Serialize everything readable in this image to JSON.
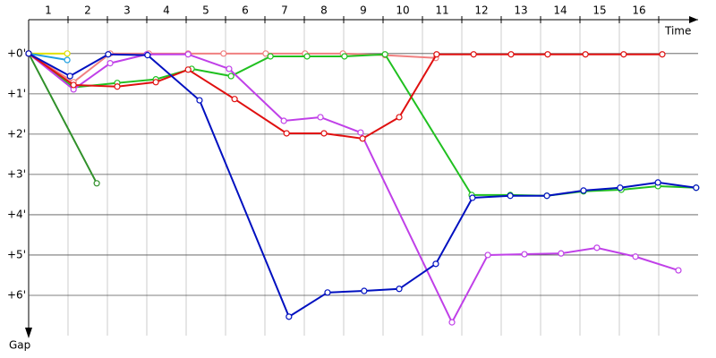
{
  "chart_data": {
    "type": "line",
    "x_label": "Time",
    "y_label": "Gap",
    "xlim": [
      0,
      17
    ],
    "ylim": [
      -0.84,
      7
    ],
    "xticks": [
      {
        "value": 0.5,
        "label": "1"
      },
      {
        "value": 1.5,
        "label": "2"
      },
      {
        "value": 2.5,
        "label": "3"
      },
      {
        "value": 3.5,
        "label": "4"
      },
      {
        "value": 4.5,
        "label": "5"
      },
      {
        "value": 5.5,
        "label": "6"
      },
      {
        "value": 6.5,
        "label": "7"
      },
      {
        "value": 7.5,
        "label": "8"
      },
      {
        "value": 8.5,
        "label": "9"
      },
      {
        "value": 9.5,
        "label": "10"
      },
      {
        "value": 10.5,
        "label": "11"
      },
      {
        "value": 11.5,
        "label": "12"
      },
      {
        "value": 12.5,
        "label": "13"
      },
      {
        "value": 13.5,
        "label": "14"
      },
      {
        "value": 14.5,
        "label": "15"
      },
      {
        "value": 15.5,
        "label": "16"
      }
    ],
    "xgrid": [
      1,
      2,
      3,
      4,
      5,
      6,
      7,
      8,
      9,
      10,
      11,
      12,
      13,
      14,
      15,
      16
    ],
    "yticks": [
      {
        "value": 0,
        "label": "+0'"
      },
      {
        "value": 1,
        "label": "+1'"
      },
      {
        "value": 2,
        "label": "+2'"
      },
      {
        "value": 3,
        "label": "+3'"
      },
      {
        "value": 4,
        "label": "+4'"
      },
      {
        "value": 5,
        "label": "+5'"
      },
      {
        "value": 6,
        "label": "+6'"
      }
    ],
    "series": [
      {
        "color": "#f08080",
        "x": [
          0,
          1.14,
          2.07,
          3.05,
          4.05,
          4.95,
          6.02,
          7.02,
          7.98,
          9.05,
          10.34
        ],
        "values": [
          0,
          0.71,
          0,
          0,
          0,
          0,
          0,
          0,
          0,
          0.04,
          0.11
        ]
      },
      {
        "color": "#e0e000",
        "x": [
          0,
          0.98
        ],
        "values": [
          0,
          0
        ]
      },
      {
        "color": "#20a0e0",
        "x": [
          0,
          0.98
        ],
        "values": [
          0,
          0.16
        ]
      },
      {
        "color": "#30902a",
        "x": [
          0,
          1.73
        ],
        "values": [
          0,
          3.22
        ]
      },
      {
        "color": "#20c020",
        "x": [
          0,
          1.14,
          2.25,
          3.23,
          4.14,
          5.14,
          6.14,
          7.07,
          8.02,
          9.05,
          11.25,
          12.23,
          13.16,
          14.09,
          15.05,
          15.98,
          16.95
        ],
        "values": [
          0,
          0.84,
          0.73,
          0.64,
          0.38,
          0.56,
          0.07,
          0.07,
          0.07,
          0.02,
          3.51,
          3.51,
          3.53,
          3.42,
          3.38,
          3.29,
          3.33
        ]
      },
      {
        "color": "#c040e8",
        "x": [
          0,
          1.14,
          2.07,
          3,
          4.05,
          5.09,
          6.48,
          7.41,
          8.43,
          10.75,
          11.66,
          12.59,
          13.52,
          14.43,
          15.41,
          16.5
        ],
        "values": [
          0,
          0.89,
          0.24,
          0.02,
          0.02,
          0.38,
          1.67,
          1.58,
          1.96,
          6.67,
          5,
          4.98,
          4.96,
          4.82,
          5.04,
          5.38
        ]
      },
      {
        "color": "#e01010",
        "x": [
          0,
          1.14,
          2.25,
          3.23,
          4.05,
          5.23,
          6.55,
          7.5,
          8.48,
          9.41,
          10.36,
          11.3,
          12.25,
          13.18,
          14.14,
          15.11,
          16.09
        ],
        "values": [
          0,
          0.78,
          0.82,
          0.71,
          0.4,
          1.13,
          1.98,
          1.98,
          2.11,
          1.58,
          0.02,
          0.02,
          0.02,
          0.02,
          0.02,
          0.02,
          0.02
        ]
      },
      {
        "color": "#0010c0",
        "x": [
          0,
          1.05,
          2.02,
          3.02,
          4.34,
          6.61,
          7.59,
          8.52,
          9.41,
          10.34,
          11.27,
          12.23,
          13.16,
          14.09,
          15.02,
          15.98,
          16.95
        ],
        "values": [
          0,
          0.56,
          0.02,
          0.04,
          1.16,
          6.53,
          5.93,
          5.89,
          5.84,
          5.22,
          3.58,
          3.53,
          3.53,
          3.4,
          3.33,
          3.2,
          3.33
        ]
      }
    ]
  }
}
